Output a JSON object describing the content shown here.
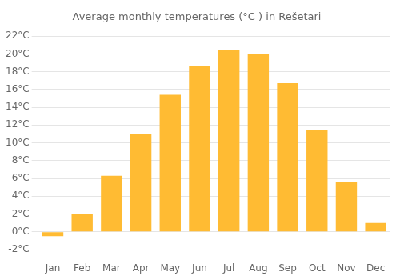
{
  "chart_data": {
    "type": "bar",
    "title": "Average monthly temperatures (°C ) in Rešetari",
    "categories": [
      "Jan",
      "Feb",
      "Mar",
      "Apr",
      "May",
      "Jun",
      "Jul",
      "Aug",
      "Sep",
      "Oct",
      "Nov",
      "Dec"
    ],
    "values": [
      -0.5,
      2.0,
      6.3,
      11.0,
      15.4,
      18.6,
      20.4,
      20.0,
      16.7,
      11.4,
      5.6,
      1.0
    ],
    "color": "#FFBB33",
    "ylim": [
      -2.5,
      22.5
    ],
    "yticks": [
      {
        "value": -2,
        "label": "-2°C"
      },
      {
        "value": 0,
        "label": "0°C"
      },
      {
        "value": 2,
        "label": "2°C"
      },
      {
        "value": 4,
        "label": "4°C"
      },
      {
        "value": 6,
        "label": "6°C"
      },
      {
        "value": 8,
        "label": "8°C"
      },
      {
        "value": 10,
        "label": "10°C"
      },
      {
        "value": 12,
        "label": "12°C"
      },
      {
        "value": 14,
        "label": "14°C"
      },
      {
        "value": 16,
        "label": "16°C"
      },
      {
        "value": 18,
        "label": "18°C"
      },
      {
        "value": 20,
        "label": "20°C"
      },
      {
        "value": 22,
        "label": "22°C"
      }
    ],
    "grid": true
  }
}
